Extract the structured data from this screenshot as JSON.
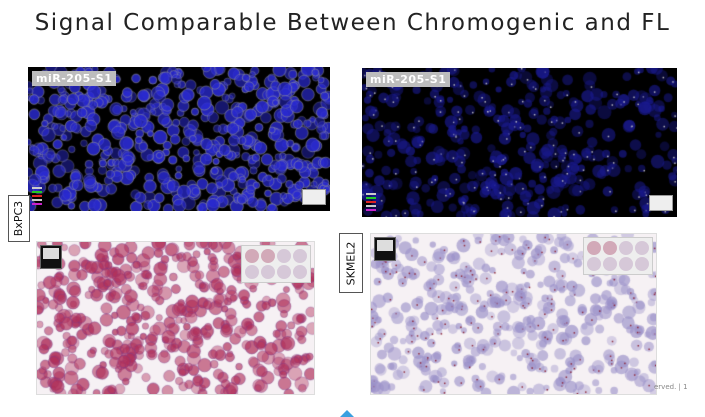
{
  "slide": {
    "title": "Signal Comparable Between Chromogenic and FL",
    "footer": "erved. | 1"
  },
  "rows": [
    {
      "label": "BxPC3",
      "fluorescence_tag": "miR-205-S1"
    },
    {
      "label": "SKMEL2",
      "fluorescence_tag": "miR-205-S1"
    }
  ],
  "colors": {
    "nuclei_blue": "#2a2ad0",
    "chromogenic_red": "#b0305a",
    "hematoxylin_purple": "#9a90c8",
    "accent_arrow": "#3aa0e0"
  }
}
